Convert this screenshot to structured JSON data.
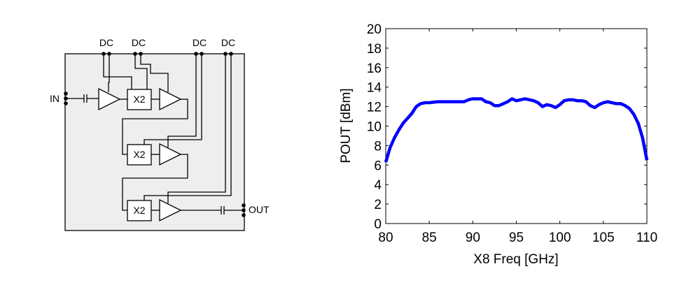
{
  "diagram": {
    "dc_labels": [
      "DC",
      "DC",
      "DC",
      "DC"
    ],
    "input_label": "IN",
    "output_label": "OUT",
    "block_labels": [
      "X2",
      "X2",
      "X2"
    ]
  },
  "chart_data": {
    "type": "line",
    "xlabel": "X8 Freq [GHz]",
    "ylabel": "POUT [dBm]",
    "color": "#0000ff",
    "x": [
      80,
      80.5,
      81,
      81.5,
      82,
      82.5,
      83,
      83.5,
      84,
      84.5,
      85,
      86,
      87,
      88,
      89,
      89.5,
      90,
      91,
      91.5,
      92,
      92.5,
      93,
      93.5,
      94,
      94.5,
      95,
      95.5,
      96,
      96.5,
      97,
      97.5,
      98,
      98.5,
      99,
      99.5,
      100,
      100.5,
      101,
      101.5,
      102,
      102.5,
      103,
      103.5,
      104,
      104.5,
      105,
      105.5,
      106,
      106.5,
      107,
      107.5,
      108,
      108.5,
      109,
      109.5,
      110
    ],
    "values": [
      6.3,
      7.8,
      8.8,
      9.6,
      10.3,
      10.8,
      11.3,
      12.0,
      12.3,
      12.4,
      12.4,
      12.5,
      12.5,
      12.5,
      12.5,
      12.7,
      12.8,
      12.8,
      12.5,
      12.4,
      12.1,
      12.1,
      12.3,
      12.5,
      12.8,
      12.6,
      12.7,
      12.8,
      12.7,
      12.6,
      12.4,
      12.0,
      12.2,
      12.1,
      11.9,
      12.2,
      12.6,
      12.7,
      12.7,
      12.6,
      12.6,
      12.5,
      12.1,
      11.9,
      12.2,
      12.4,
      12.5,
      12.4,
      12.3,
      12.3,
      12.1,
      11.8,
      11.2,
      10.3,
      8.8,
      6.5
    ],
    "xlim": [
      80,
      110
    ],
    "xticks": [
      80,
      85,
      90,
      95,
      100,
      105,
      110
    ],
    "ylim": [
      0,
      20
    ],
    "yticks": [
      0,
      2,
      4,
      6,
      8,
      10,
      12,
      14,
      16,
      18,
      20
    ]
  }
}
